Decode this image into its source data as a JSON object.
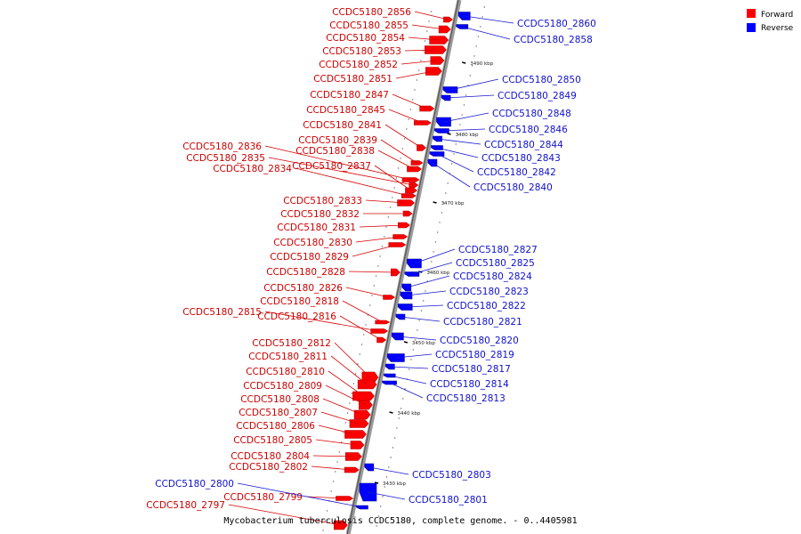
{
  "legend": {
    "forward_label": "Forward",
    "reverse_label": "Reverse",
    "forward_color": "#ff0000",
    "reverse_color": "#0000ff"
  },
  "caption": "Mycobacterium tuberculosis CCDC5180, complete genome. - 0..4405981",
  "ticks": [
    "3490 kbp",
    "3480 kbp",
    "3470 kbp",
    "3460 kbp",
    "3450 kbp",
    "3440 kbp",
    "3430 kbp"
  ],
  "forward_genes": [
    "CCDC5180_2856",
    "CCDC5180_2855",
    "CCDC5180_2854",
    "CCDC5180_2853",
    "CCDC5180_2852",
    "CCDC5180_2851",
    "CCDC5180_2847",
    "CCDC5180_2845",
    "CCDC5180_2841",
    "CCDC5180_2839",
    "CCDC5180_2838",
    "CCDC5180_2836",
    "CCDC5180_2835",
    "CCDC5180_2837",
    "CCDC5180_2834",
    "CCDC5180_2833",
    "CCDC5180_2832",
    "CCDC5180_2831",
    "CCDC5180_2830",
    "CCDC5180_2829",
    "CCDC5180_2828",
    "CCDC5180_2826",
    "CCDC5180_2818",
    "CCDC5180_2815",
    "CCDC5180_2816",
    "CCDC5180_2812",
    "CCDC5180_2811",
    "CCDC5180_2810",
    "CCDC5180_2809",
    "CCDC5180_2808",
    "CCDC5180_2807",
    "CCDC5180_2806",
    "CCDC5180_2805",
    "CCDC5180_2804",
    "CCDC5180_2802",
    "CCDC5180_2799",
    "CCDC5180_2797"
  ],
  "reverse_genes": [
    "CCDC5180_2860",
    "CCDC5180_2858",
    "CCDC5180_2850",
    "CCDC5180_2849",
    "CCDC5180_2848",
    "CCDC5180_2846",
    "CCDC5180_2844",
    "CCDC5180_2843",
    "CCDC5180_2842",
    "CCDC5180_2840",
    "CCDC5180_2827",
    "CCDC5180_2825",
    "CCDC5180_2824",
    "CCDC5180_2823",
    "CCDC5180_2822",
    "CCDC5180_2821",
    "CCDC5180_2820",
    "CCDC5180_2819",
    "CCDC5180_2817",
    "CCDC5180_2814",
    "CCDC5180_2813",
    "CCDC5180_2803",
    "CCDC5180_2800",
    "CCDC5180_2801"
  ]
}
